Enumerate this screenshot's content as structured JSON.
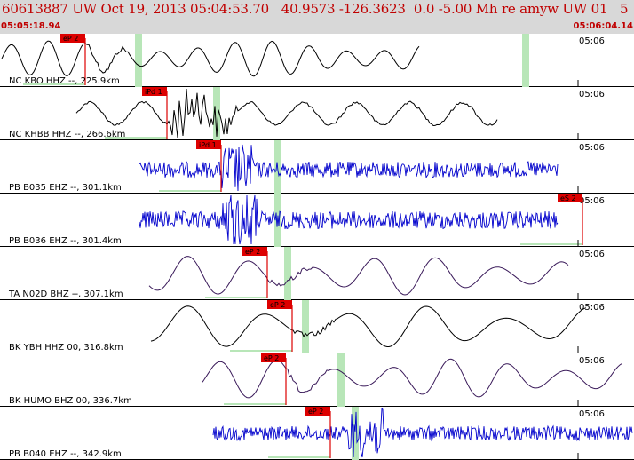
{
  "header": {
    "title": "60613887 UW Oct 19, 2013 05:04:53.70   40.9573 -126.3623  0.0 -5.00 Mh re amyw UW 01   5",
    "start_time": "05:05:18.94",
    "end_time": "05:06:04.14"
  },
  "time_tick_label": "05:06",
  "colors": {
    "title": "#c00000",
    "pick": "#dd0000",
    "window": "#b8e6b8",
    "blue_trace": "#0000cc",
    "black_trace": "#000000",
    "purple_trace": "#3a1a5a"
  },
  "channels": [
    {
      "label": "NC KBO HHZ --, 225.9km",
      "pick": "eP 2",
      "color": "black"
    },
    {
      "label": "NC KHBB HHZ --, 266.6km",
      "pick": "iPd 1",
      "color": "black"
    },
    {
      "label": "PB B035 EHZ --, 301.1km",
      "pick": "iPd 1",
      "color": "blue"
    },
    {
      "label": "PB B036 EHZ --, 301.4km",
      "pick": "eS 2",
      "color": "blue"
    },
    {
      "label": "TA N02D BHZ --, 307.1km",
      "pick": "eP 2",
      "color": "purple"
    },
    {
      "label": "BK YBH HHZ 00, 316.8km",
      "pick": "eP 2",
      "color": "black"
    },
    {
      "label": "BK HUMO BHZ 00, 336.7km",
      "pick": "eP 2",
      "color": "purple"
    },
    {
      "label": "PB B040 EHZ --, 342.9km",
      "pick": "eP 2",
      "color": "blue"
    }
  ]
}
